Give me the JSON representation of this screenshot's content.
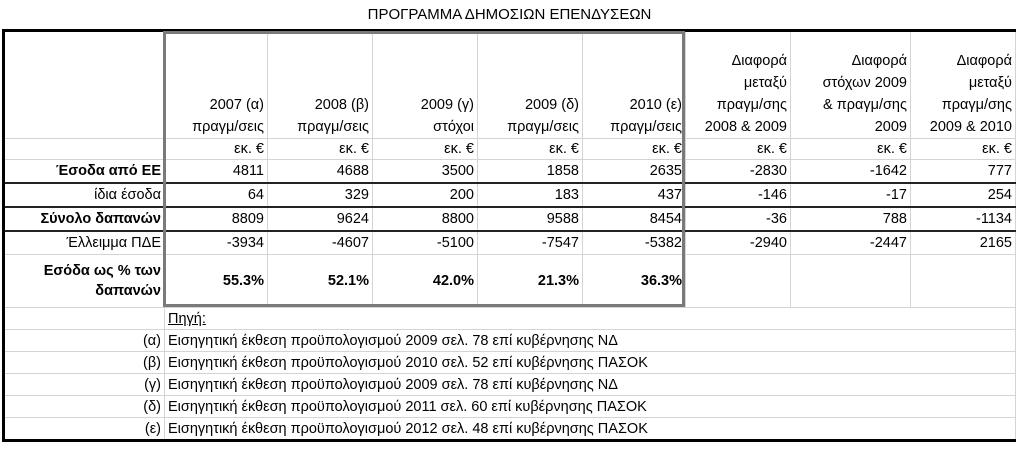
{
  "title": "ΠΡΟΓΡΑΜΜΑ ΔΗΜΟΣΙΩΝ ΕΠΕΝΔΥΣΕΩΝ",
  "headers": [
    [
      "2007 (α)",
      "πραγμ/σεις"
    ],
    [
      "2008 (β)",
      "πραγμ/σεις"
    ],
    [
      "2009 (γ)",
      "στόχοι"
    ],
    [
      "2009 (δ)",
      "πραγμ/σεις"
    ],
    [
      "2010 (ε)",
      "πραγμ/σεις"
    ],
    [
      "Διαφορά",
      "μεταξύ",
      "πραγμ/σης",
      "2008 & 2009"
    ],
    [
      "Διαφορά",
      "στόχων 2009",
      "& πραγμ/σης",
      "2009"
    ],
    [
      "Διαφορά",
      "μεταξύ",
      "πραγμ/σης",
      "2009 & 2010"
    ]
  ],
  "units": [
    "εκ. €",
    "εκ. €",
    "εκ. €",
    "εκ. €",
    "εκ. €",
    "εκ. €",
    "εκ. €",
    "εκ. €"
  ],
  "rows": [
    {
      "label": "Έσοδα από ΕΕ",
      "values": [
        "4811",
        "4688",
        "3500",
        "1858",
        "2635",
        "-2830",
        "-1642",
        "777"
      ]
    },
    {
      "label": "ίδια έσοδα",
      "values": [
        "64",
        "329",
        "200",
        "183",
        "437",
        "-146",
        "-17",
        "254"
      ]
    },
    {
      "label": "Σύνολο δαπανών",
      "values": [
        "8809",
        "9624",
        "8800",
        "9588",
        "8454",
        "-36",
        "788",
        "-1134"
      ]
    },
    {
      "label": "Έλλειμμα ΠΔΕ",
      "values": [
        "-3934",
        "-4607",
        "-5100",
        "-7547",
        "-5382",
        "-2940",
        "-2447",
        "2165"
      ]
    },
    {
      "label": [
        "Εσόδα ως % των",
        "δαπανών"
      ],
      "values": [
        "55.3%",
        "52.1%",
        "42.0%",
        "21.3%",
        "36.3%"
      ]
    }
  ],
  "source_label": "Πηγή:",
  "notes": [
    {
      "marker": "(α)",
      "text": "Εισηγητική έκθεση προϋπολογισμού 2009 σελ. 78 επί κυβέρνησης ΝΔ"
    },
    {
      "marker": "(β)",
      "text": "Εισηγητική έκθεση προϋπολογισμού 2010 σελ. 52 επί κυβέρνησης ΠΑΣΟΚ"
    },
    {
      "marker": "(γ)",
      "text": "Εισηγητική έκθεση προϋπολογισμού 2009 σελ. 78 επί κυβέρνησης ΝΔ"
    },
    {
      "marker": "(δ)",
      "text": "Εισηγητική έκθεση προϋπολογισμού 2011 σελ. 60 επί κυβέρνησης ΠΑΣΟΚ"
    },
    {
      "marker": "(ε)",
      "text": "Εισηγητική έκθεση προϋπολογισμού 2012 σελ. 48 επί κυβέρνησης ΠΑΣΟΚ"
    }
  ]
}
